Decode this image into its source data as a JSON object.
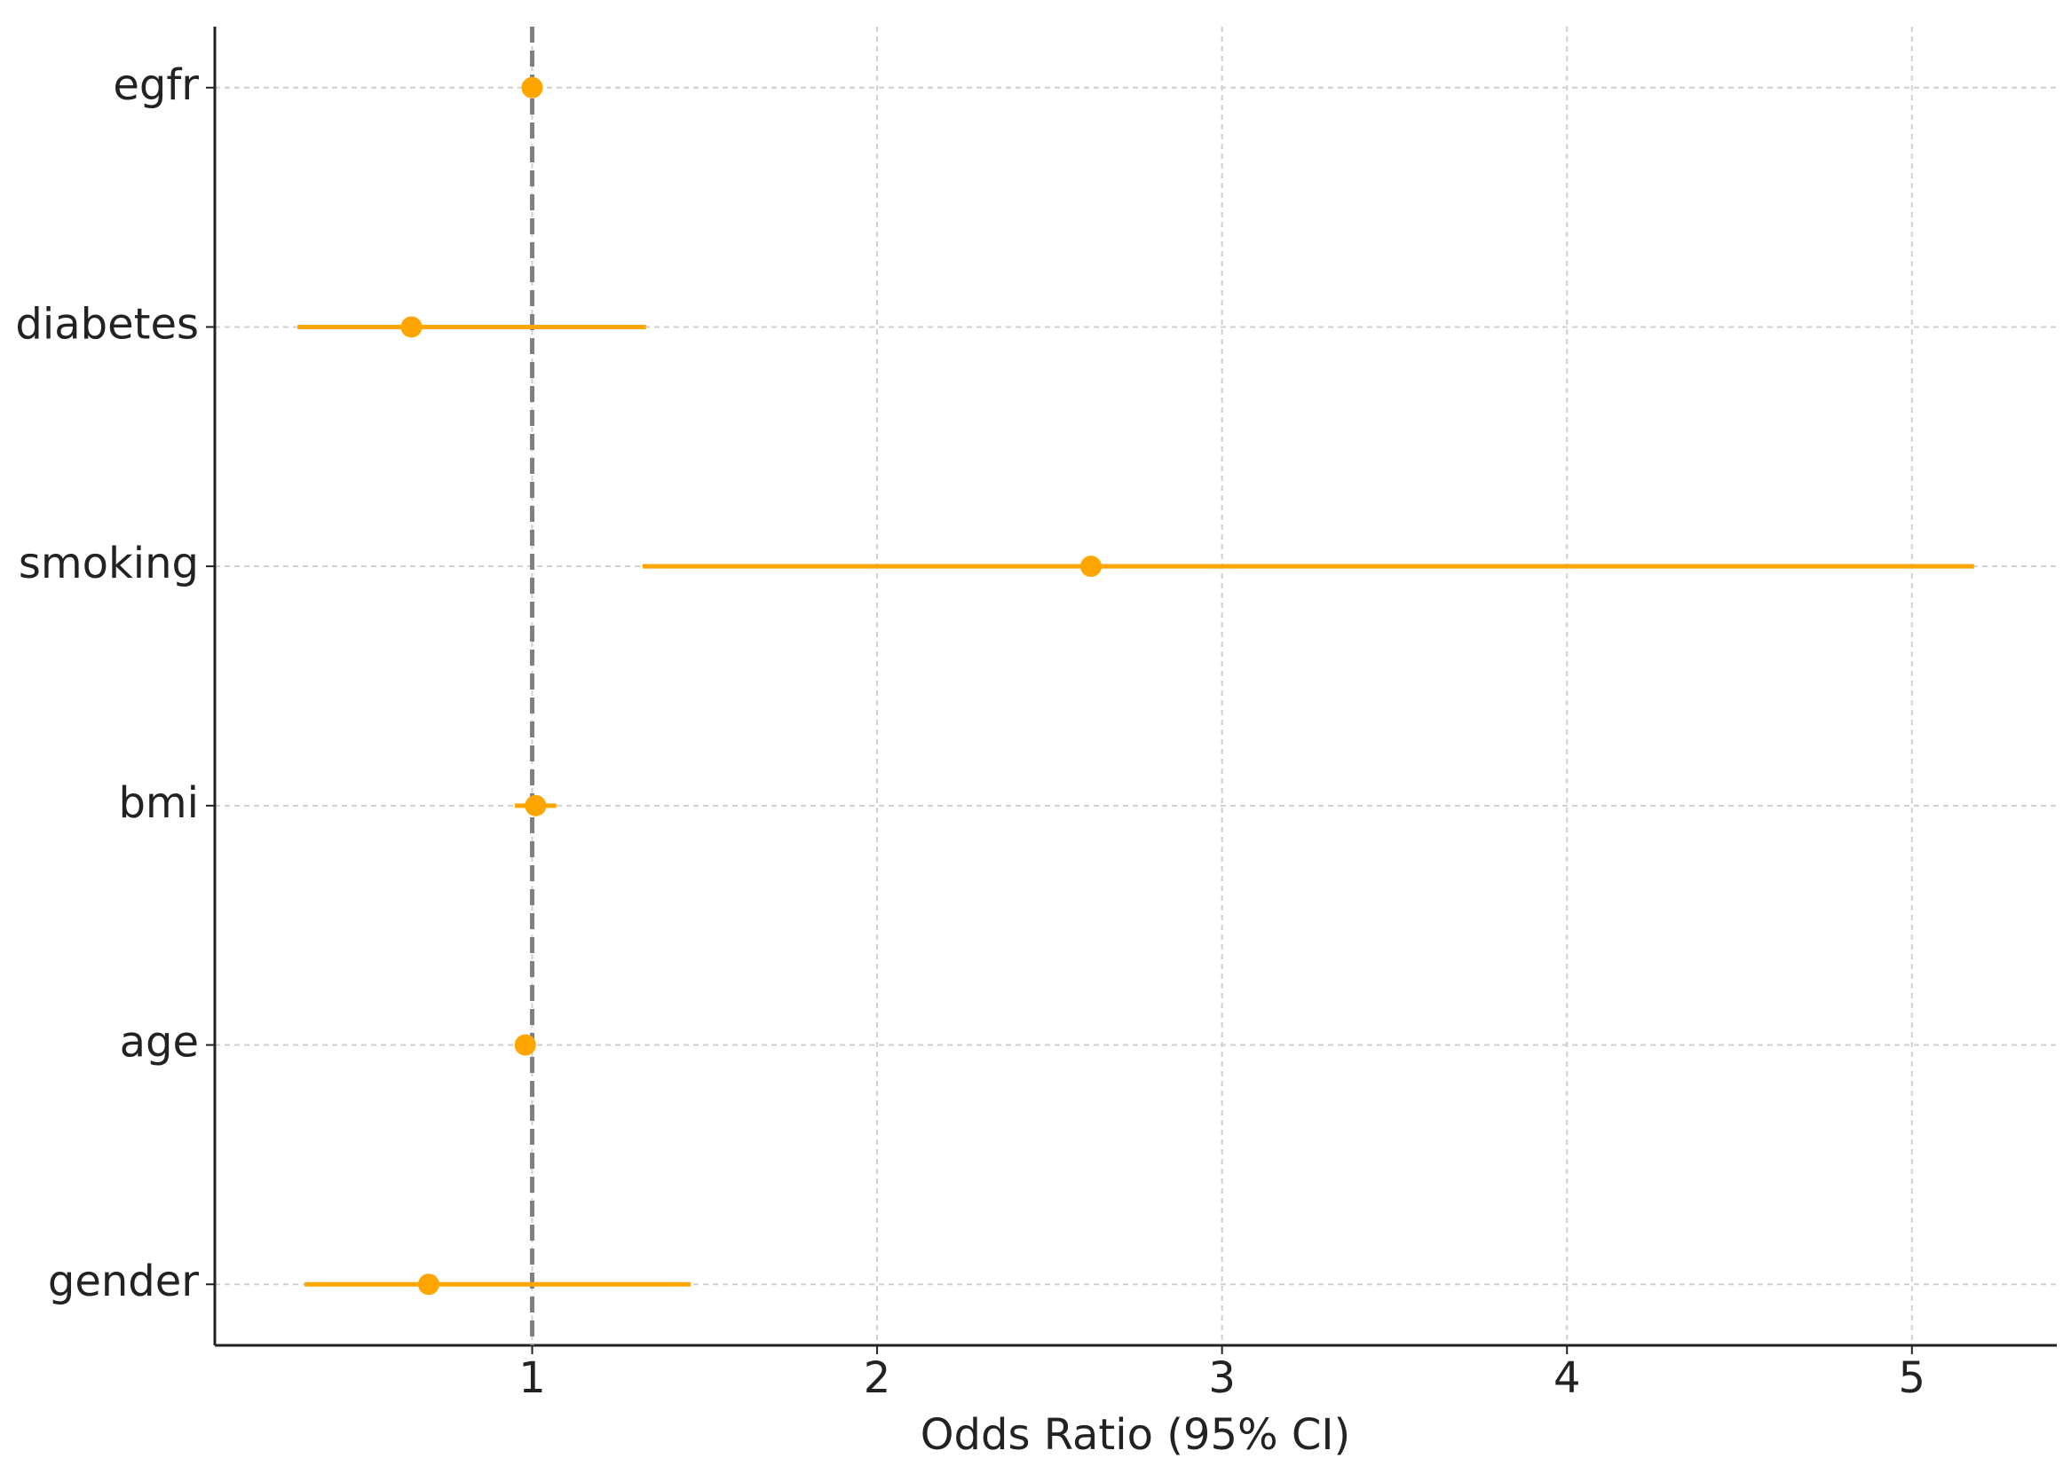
{
  "chart_data": {
    "type": "forest",
    "xlabel": "Odds Ratio (95% CI)",
    "categories": [
      "egfr",
      "diabetes",
      "smoking",
      "bmi",
      "age",
      "gender"
    ],
    "values": [
      1.0,
      0.65,
      2.62,
      1.01,
      0.98,
      0.7
    ],
    "ci_lower": [
      0.99,
      0.32,
      1.32,
      0.95,
      0.96,
      0.34
    ],
    "ci_upper": [
      1.01,
      1.33,
      5.18,
      1.07,
      1.0,
      1.46
    ],
    "color": "#ffa500",
    "reference_line": 1,
    "xlim": [
      0.08,
      5.42
    ],
    "xticks": [
      1,
      2,
      3,
      4,
      5
    ],
    "grid": true
  }
}
